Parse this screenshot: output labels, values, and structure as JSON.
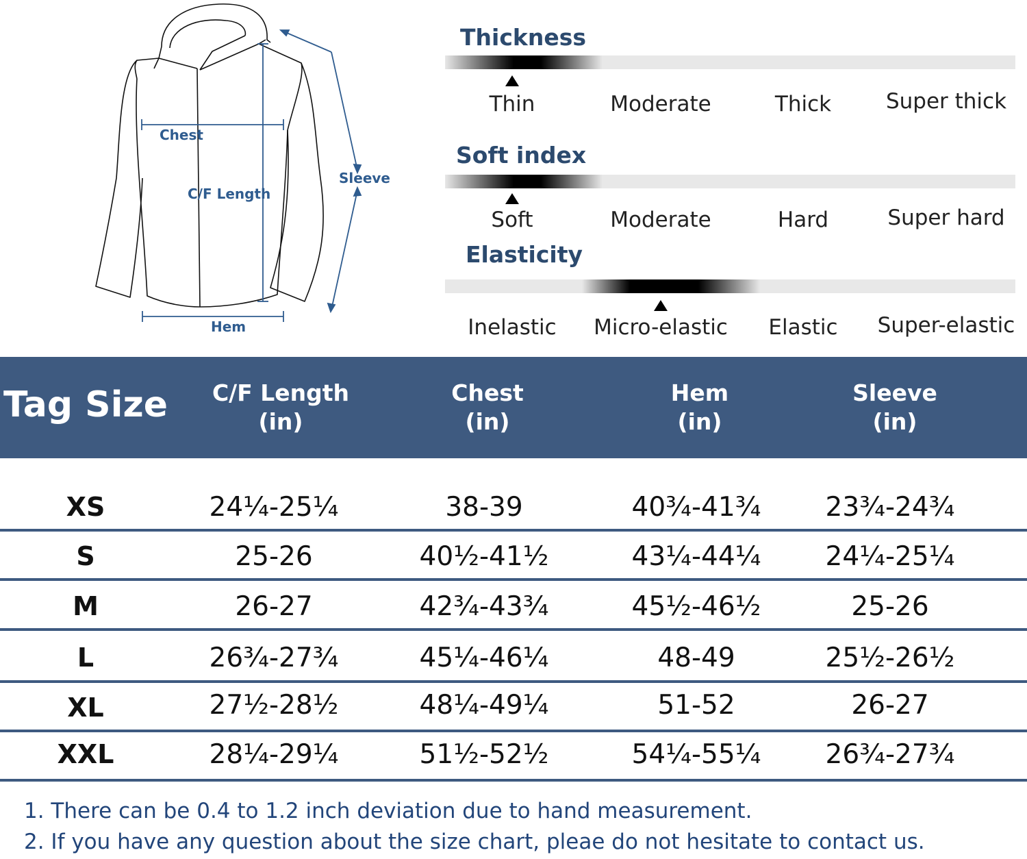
{
  "diagram": {
    "chest_label": "Chest",
    "cf_length_label": "C/F Length",
    "sleeve_label": "Sleeve",
    "hem_label": "Hem"
  },
  "scales": [
    {
      "title": "Thickness",
      "levels": [
        "Thin",
        "Moderate",
        "Thick",
        "Super thick"
      ],
      "selected_index": 0
    },
    {
      "title": "Soft index",
      "levels": [
        "Soft",
        "Moderate",
        "Hard",
        "Super hard"
      ],
      "selected_index": 0
    },
    {
      "title": "Elasticity",
      "levels": [
        "Inelastic",
        "Micro-elastic",
        "Elastic",
        "Super-elastic"
      ],
      "selected_index": 1
    }
  ],
  "table": {
    "tag_size_header": "Tag Size",
    "columns": [
      {
        "line1": "C/F Length",
        "line2": "(in)"
      },
      {
        "line1": "Chest",
        "line2": "(in)"
      },
      {
        "line1": "Hem",
        "line2": "(in)"
      },
      {
        "line1": "Sleeve",
        "line2": "(in)"
      }
    ],
    "rows": [
      {
        "size": "XS",
        "values": [
          "24¼-25¼",
          "38-39",
          "40¾-41¾",
          "23¾-24¾"
        ]
      },
      {
        "size": "S",
        "values": [
          "25-26",
          "40½-41½",
          "43¼-44¼",
          "24¼-25¼"
        ]
      },
      {
        "size": "M",
        "values": [
          "26-27",
          "42¾-43¾",
          "45½-46½",
          "25-26"
        ]
      },
      {
        "size": "L",
        "values": [
          "26¾-27¾",
          "45¼-46¼",
          "48-49",
          "25½-26½"
        ]
      },
      {
        "size": "XL",
        "values": [
          "27½-28½",
          "48¼-49¼",
          "51-52",
          "26-27"
        ]
      },
      {
        "size": "XXL",
        "values": [
          "28¼-29¼",
          "51½-52½",
          "54¼-55¼",
          "26¾-27¾"
        ]
      }
    ]
  },
  "notes": [
    "1. There can be 0.4 to 1.2 inch deviation due to hand measurement.",
    "2. If you have any question about the size chart, pleae do not hesitate to contact us."
  ],
  "colors": {
    "accent": "#3e5a80",
    "diagram_blue": "#2f5c8f",
    "note_text": "#22457a"
  }
}
